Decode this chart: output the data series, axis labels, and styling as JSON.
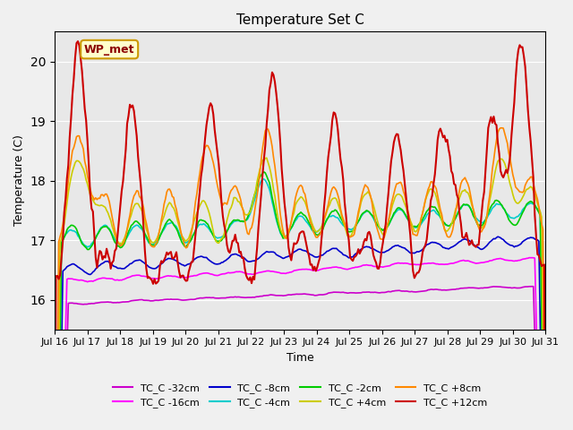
{
  "title": "Temperature Set C",
  "xlabel": "Time",
  "ylabel": "Temperature (C)",
  "ylim": [
    15.5,
    20.5
  ],
  "xlim": [
    0,
    360
  ],
  "x_tick_labels": [
    "Jul 16",
    "Jul 17",
    "Jul 18",
    "Jul 19",
    "Jul 20",
    "Jul 21",
    "Jul 22",
    "Jul 23",
    "Jul 24",
    "Jul 25",
    "Jul 26",
    "Jul 27",
    "Jul 28",
    "Jul 29",
    "Jul 30",
    "Jul 31"
  ],
  "annotation": "WP_met",
  "background_color": "#e8e8e8",
  "legend": [
    {
      "label": "TC_C -32cm",
      "color": "#cc00cc"
    },
    {
      "label": "TC_C -16cm",
      "color": "#ff00ff"
    },
    {
      "label": "TC_C -8cm",
      "color": "#0000cc"
    },
    {
      "label": "TC_C -4cm",
      "color": "#00cccc"
    },
    {
      "label": "TC_C -2cm",
      "color": "#00cc00"
    },
    {
      "label": "TC_C +4cm",
      "color": "#cccc00"
    },
    {
      "label": "TC_C +8cm",
      "color": "#ff8800"
    },
    {
      "label": "TC_C +12cm",
      "color": "#cc0000"
    }
  ]
}
